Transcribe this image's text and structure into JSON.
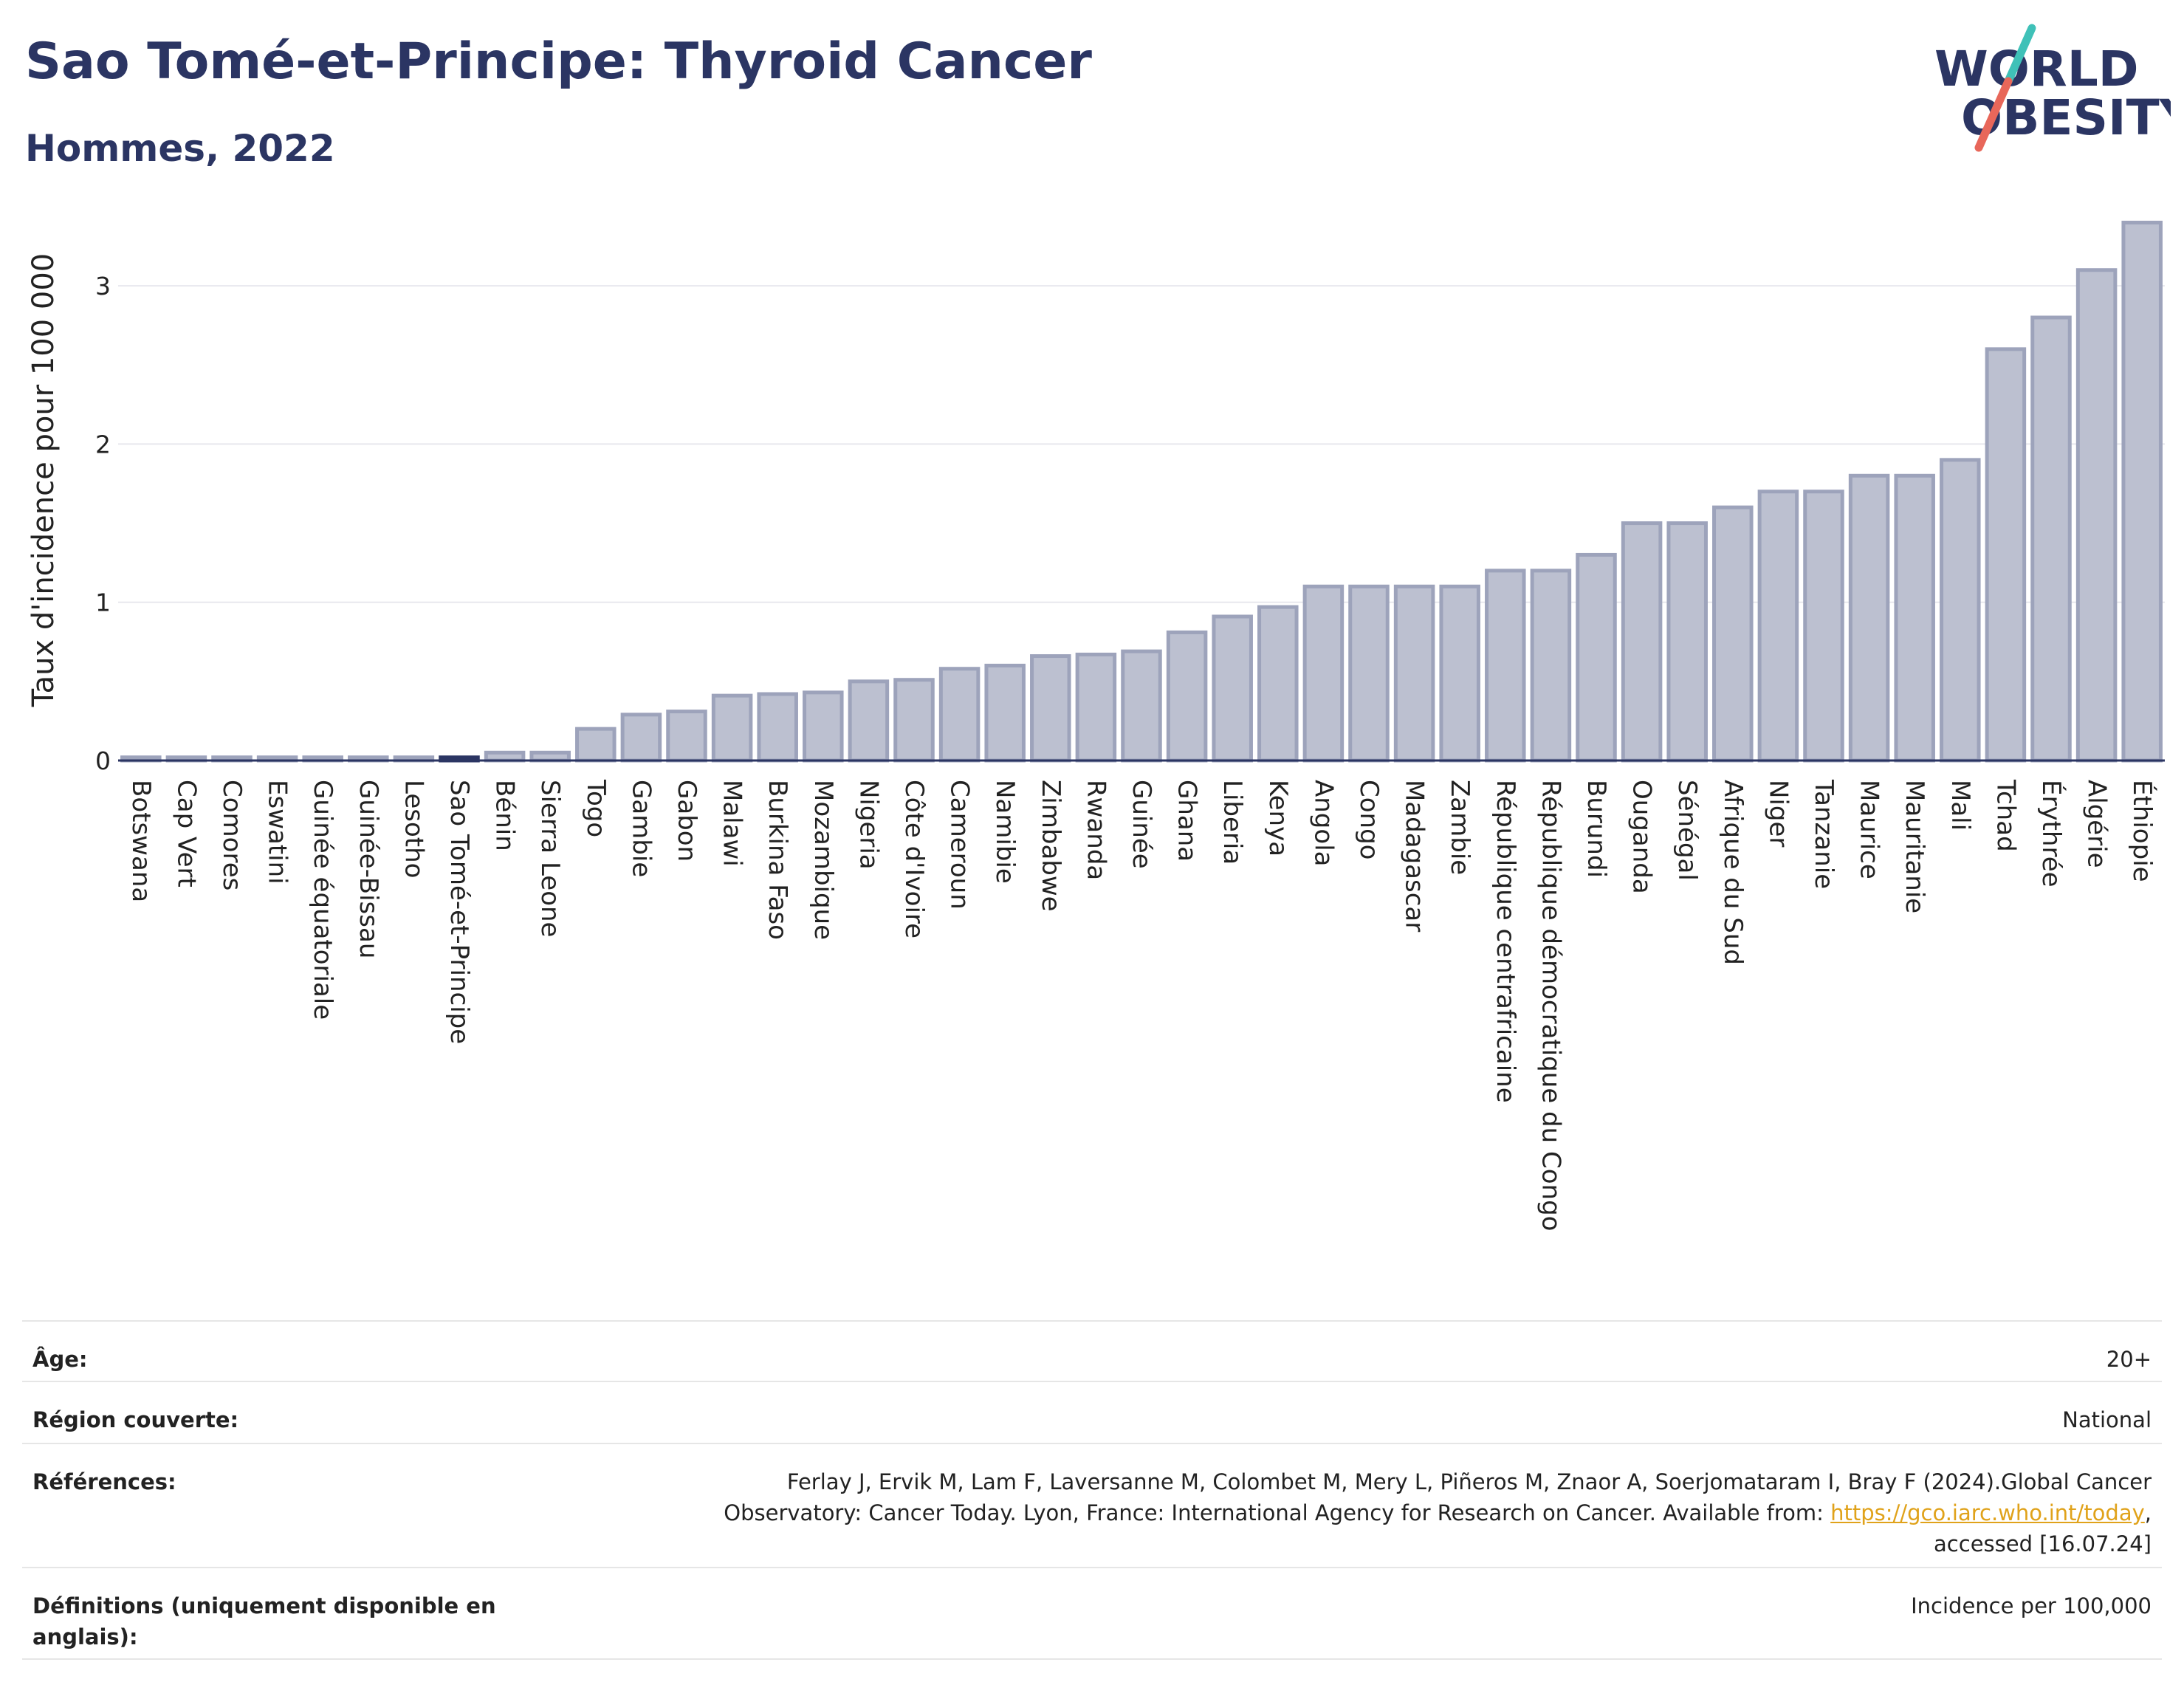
{
  "header": {
    "title": "Sao Tomé-et-Principe: Thyroid Cancer",
    "subtitle": "Hommes, 2022"
  },
  "logo": {
    "line1": "WORLD",
    "line2": "OBESITY",
    "colors": {
      "text": "#2b3563",
      "slash_teal": "#3fc1b8",
      "slash_red": "#e8675a"
    }
  },
  "chart_data": {
    "type": "bar",
    "ylabel": "Taux d'incidence pour 100 000",
    "ylim": [
      0,
      3.5
    ],
    "yticks": [
      0,
      1,
      2,
      3
    ],
    "grid": true,
    "highlight": "Sao Tomé-et-Principe",
    "colors": {
      "bar": "#bcc0d0",
      "bar_edge": "#9da3bb",
      "highlight": "#2b3563",
      "axis": "#2b3563",
      "grid": "#e8e8ee"
    },
    "categories": [
      "Botswana",
      "Cap Vert",
      "Comores",
      "Eswatini",
      "Guinée équatoriale",
      "Guinée-Bissau",
      "Lesotho",
      "Sao Tomé-et-Principe",
      "Bénin",
      "Sierra Leone",
      "Togo",
      "Gambie",
      "Gabon",
      "Malawi",
      "Burkina Faso",
      "Mozambique",
      "Nigeria",
      "Côte d'Ivoire",
      "Cameroun",
      "Namibie",
      "Zimbabwe",
      "Rwanda",
      "Guinée",
      "Ghana",
      "Liberia",
      "Kenya",
      "Angola",
      "Congo",
      "Madagascar",
      "Zambie",
      "République centrafricaine",
      "République démocratique du Congo",
      "Burundi",
      "Ouganda",
      "Sénégal",
      "Afrique du Sud",
      "Niger",
      "Tanzanie",
      "Maurice",
      "Mauritanie",
      "Mali",
      "Tchad",
      "Érythrée",
      "Algérie",
      "Éthiopie"
    ],
    "values": [
      0.02,
      0.02,
      0.02,
      0.02,
      0.02,
      0.02,
      0.02,
      0.02,
      0.05,
      0.05,
      0.2,
      0.29,
      0.31,
      0.41,
      0.42,
      0.43,
      0.5,
      0.51,
      0.58,
      0.6,
      0.66,
      0.67,
      0.69,
      0.81,
      0.91,
      0.97,
      1.1,
      1.1,
      1.1,
      1.1,
      1.2,
      1.2,
      1.3,
      1.5,
      1.5,
      1.6,
      1.7,
      1.7,
      1.8,
      1.8,
      1.9,
      2.6,
      2.8,
      3.1,
      3.4
    ]
  },
  "info": {
    "age_label": "Âge:",
    "age_value": "20+",
    "region_label": "Région couverte:",
    "region_value": "National",
    "references_label": "Références:",
    "references_line1": "Ferlay J, Ervik M, Lam F, Laversanne M, Colombet M, Mery L, Piñeros M, Znaor A, Soerjomataram I, Bray F (2024).Global Cancer",
    "references_line2": "Observatory: Cancer Today. Lyon, France: International Agency for Research on Cancer. Available from: ",
    "references_link": "https://gco.iarc.who.int/today",
    "references_line2_end": ",",
    "references_line3": "accessed [16.07.24]",
    "definitions_label": "Définitions (uniquement disponible en anglais):",
    "definitions_value": "Incidence per 100,000"
  }
}
